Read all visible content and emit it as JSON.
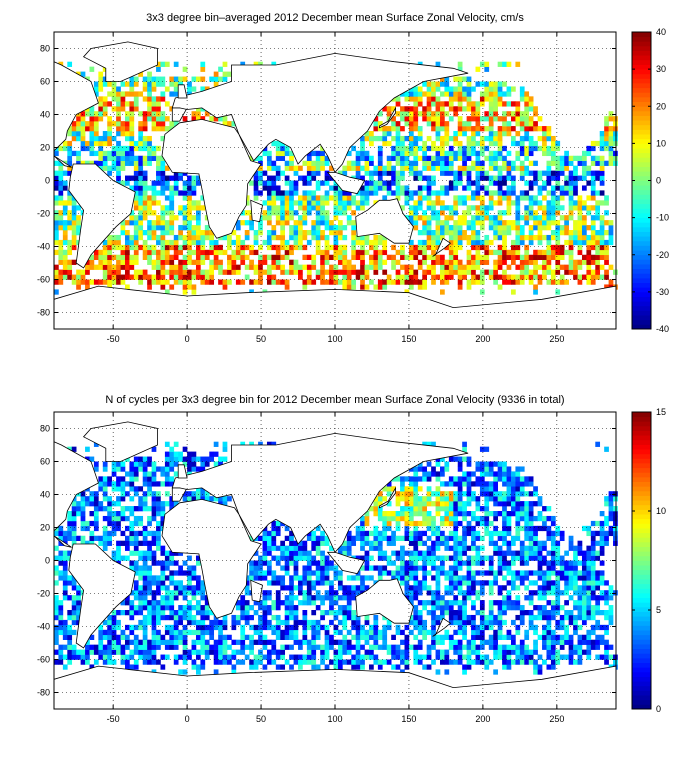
{
  "chart_data": [
    {
      "type": "heatmap",
      "title": "3x3 degree bin–averaged 2012 December mean Surface Zonal Velocity, cm/s",
      "xlabel": "",
      "ylabel": "",
      "xlim": [
        -90,
        290
      ],
      "ylim": [
        -90,
        90
      ],
      "xticks": [
        -50,
        0,
        50,
        100,
        150,
        200,
        250
      ],
      "yticks": [
        -80,
        -60,
        -40,
        -20,
        0,
        20,
        40,
        60,
        80
      ],
      "grid": true,
      "bin_size_deg": 3,
      "colorbar": {
        "position": "right",
        "colormap": "jet",
        "range": [
          -40,
          40
        ],
        "ticks": [
          -40,
          -30,
          -20,
          -10,
          0,
          10,
          20,
          30,
          40
        ]
      }
    },
    {
      "type": "heatmap",
      "title": "N of cycles per 3x3 degree bin for 2012 December mean Surface Zonal Velocity (9336 in total)",
      "xlabel": "",
      "ylabel": "",
      "xlim": [
        -90,
        290
      ],
      "ylim": [
        -90,
        90
      ],
      "xticks": [
        -50,
        0,
        50,
        100,
        150,
        200,
        250
      ],
      "yticks": [
        -80,
        -60,
        -40,
        -20,
        0,
        20,
        40,
        60,
        80
      ],
      "grid": true,
      "bin_size_deg": 3,
      "colorbar": {
        "position": "right",
        "colormap": "jet",
        "range": [
          0,
          15
        ],
        "ticks": [
          0,
          5,
          10,
          15
        ]
      }
    }
  ]
}
